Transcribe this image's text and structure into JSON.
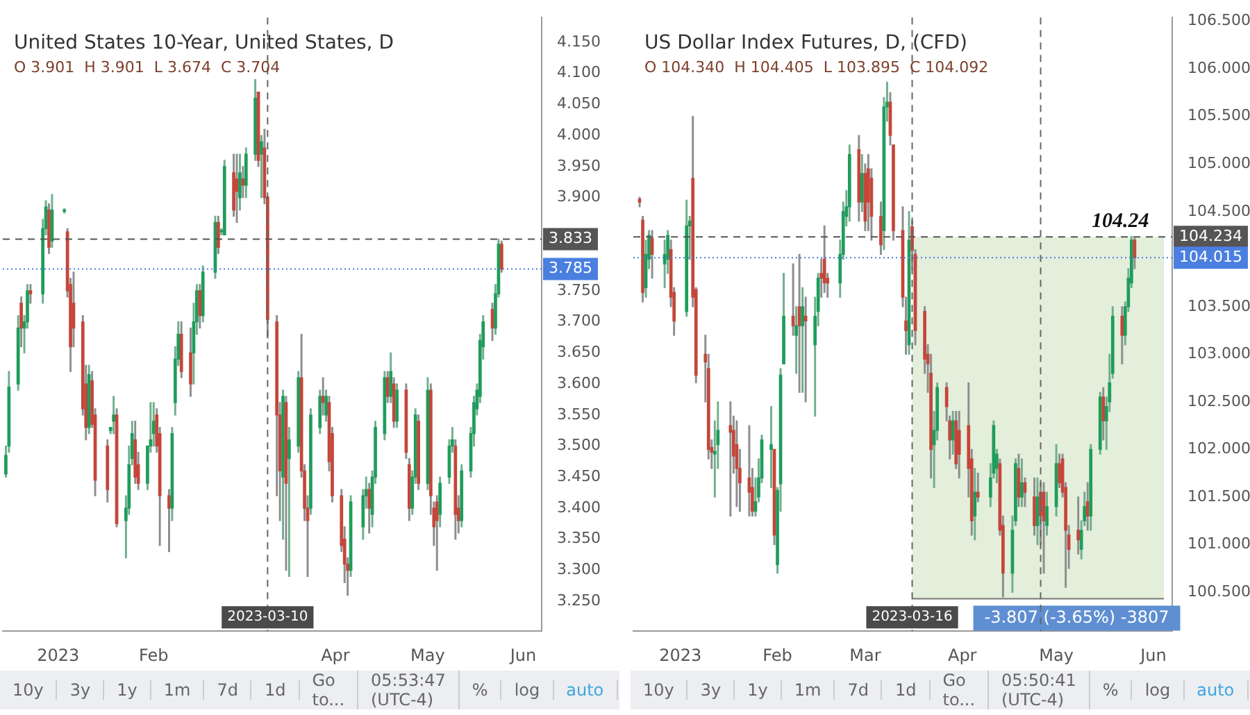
{
  "chart_data": [
    {
      "type": "candlestick",
      "title": "United States 10-Year, United States, D",
      "subtitle": "O 3.901  H 3.901  L 3.674  C 3.704",
      "x": [
        "2022-12-15",
        "2022-12-16",
        "2022-12-19",
        "2022-12-20",
        "2022-12-21",
        "2022-12-22",
        "2022-12-23",
        "2022-12-27",
        "2022-12-28",
        "2022-12-29",
        "2022-12-30",
        "2023-01-03",
        "2023-01-04",
        "2023-01-05",
        "2023-01-06",
        "2023-01-09",
        "2023-01-10",
        "2023-01-11",
        "2023-01-12",
        "2023-01-13",
        "2023-01-17",
        "2023-01-18",
        "2023-01-19",
        "2023-01-20",
        "2023-01-23",
        "2023-01-24",
        "2023-01-25",
        "2023-01-26",
        "2023-01-27",
        "2023-01-30",
        "2023-01-31",
        "2023-02-01",
        "2023-02-02",
        "2023-02-03",
        "2023-02-06",
        "2023-02-07",
        "2023-02-08",
        "2023-02-09",
        "2023-02-10",
        "2023-02-13",
        "2023-02-14",
        "2023-02-15",
        "2023-02-16",
        "2023-02-17",
        "2023-02-21",
        "2023-02-22",
        "2023-02-23",
        "2023-02-24",
        "2023-02-27",
        "2023-02-28",
        "2023-03-01",
        "2023-03-02",
        "2023-03-03",
        "2023-03-06",
        "2023-03-07",
        "2023-03-08",
        "2023-03-09",
        "2023-03-10",
        "2023-03-13",
        "2023-03-14",
        "2023-03-15",
        "2023-03-16",
        "2023-03-17",
        "2023-03-20",
        "2023-03-21",
        "2023-03-22",
        "2023-03-23",
        "2023-03-24",
        "2023-03-27",
        "2023-03-28",
        "2023-03-29",
        "2023-03-30",
        "2023-03-31",
        "2023-04-03",
        "2023-04-04",
        "2023-04-05",
        "2023-04-06",
        "2023-04-10",
        "2023-04-11",
        "2023-04-12",
        "2023-04-13",
        "2023-04-14",
        "2023-04-17",
        "2023-04-18",
        "2023-04-19",
        "2023-04-20",
        "2023-04-21",
        "2023-04-24",
        "2023-04-25",
        "2023-04-26",
        "2023-04-27",
        "2023-04-28",
        "2023-05-01",
        "2023-05-02",
        "2023-05-03",
        "2023-05-04",
        "2023-05-05",
        "2023-05-08",
        "2023-05-09",
        "2023-05-10",
        "2023-05-11",
        "2023-05-12",
        "2023-05-15",
        "2023-05-16",
        "2023-05-17",
        "2023-05-18",
        "2023-05-19",
        "2023-05-22",
        "2023-05-23",
        "2023-05-24",
        "2023-05-25"
      ],
      "ohlc": [
        [
          3.455,
          3.5,
          3.45,
          3.485
        ],
        [
          3.5,
          3.62,
          3.49,
          3.595
        ],
        [
          3.6,
          3.71,
          3.59,
          3.69
        ],
        [
          3.73,
          3.74,
          3.66,
          3.69
        ],
        [
          3.69,
          3.71,
          3.65,
          3.7
        ],
        [
          3.7,
          3.76,
          3.69,
          3.75
        ],
        [
          3.75,
          3.76,
          3.73,
          3.745
        ],
        [
          3.745,
          3.865,
          3.73,
          3.85
        ],
        [
          3.85,
          3.895,
          3.84,
          3.885
        ],
        [
          3.88,
          3.89,
          3.81,
          3.82
        ],
        [
          3.83,
          3.905,
          3.82,
          3.88
        ],
        [
          3.878,
          3.882,
          3.875,
          3.88
        ],
        [
          3.845,
          3.85,
          3.74,
          3.75
        ],
        [
          3.76,
          3.77,
          3.62,
          3.66
        ],
        [
          3.73,
          3.78,
          3.66,
          3.69
        ],
        [
          3.7,
          3.71,
          3.55,
          3.56
        ],
        [
          3.6,
          3.63,
          3.51,
          3.53
        ],
        [
          3.53,
          3.63,
          3.52,
          3.615
        ],
        [
          3.605,
          3.62,
          3.53,
          3.535
        ],
        [
          3.55,
          3.56,
          3.42,
          3.445
        ],
        [
          3.5,
          3.51,
          3.41,
          3.43
        ],
        [
          3.525,
          3.53,
          3.52,
          3.53
        ],
        [
          3.54,
          3.58,
          3.52,
          3.55
        ],
        [
          3.55,
          3.56,
          3.37,
          3.375
        ],
        [
          3.38,
          3.42,
          3.32,
          3.4
        ],
        [
          3.4,
          3.5,
          3.39,
          3.47
        ],
        [
          3.48,
          3.54,
          3.47,
          3.52
        ],
        [
          3.51,
          3.54,
          3.44,
          3.45
        ],
        [
          3.47,
          3.49,
          3.43,
          3.44
        ],
        [
          3.44,
          3.5,
          3.43,
          3.5
        ],
        [
          3.5,
          3.57,
          3.49,
          3.51
        ],
        [
          3.52,
          3.57,
          3.5,
          3.54
        ],
        [
          3.55,
          3.56,
          3.49,
          3.5
        ],
        [
          3.52,
          3.53,
          3.34,
          3.42
        ],
        [
          3.42,
          3.43,
          3.33,
          3.4
        ],
        [
          3.4,
          3.53,
          3.38,
          3.52
        ],
        [
          3.57,
          3.66,
          3.55,
          3.64
        ],
        [
          3.64,
          3.7,
          3.63,
          3.68
        ],
        [
          3.68,
          3.7,
          3.61,
          3.62
        ],
        [
          3.65,
          3.69,
          3.58,
          3.6
        ],
        [
          3.65,
          3.73,
          3.6,
          3.7
        ],
        [
          3.7,
          3.76,
          3.68,
          3.75
        ],
        [
          3.75,
          3.76,
          3.69,
          3.71
        ],
        [
          3.71,
          3.79,
          3.7,
          3.78
        ],
        [
          3.78,
          3.87,
          3.77,
          3.86
        ],
        [
          3.86,
          3.87,
          3.81,
          3.82
        ],
        [
          3.845,
          3.85,
          3.84,
          3.846
        ],
        [
          3.84,
          3.96,
          3.84,
          3.95
        ],
        [
          3.94,
          3.97,
          3.87,
          3.88
        ],
        [
          3.93,
          3.97,
          3.86,
          3.91
        ],
        [
          3.9,
          3.97,
          3.88,
          3.94
        ],
        [
          3.93,
          3.95,
          3.9,
          3.92
        ],
        [
          3.92,
          3.98,
          3.9,
          3.97
        ],
        [
          3.97,
          4.09,
          3.96,
          4.06
        ],
        [
          4.07,
          4.07,
          3.95,
          3.96
        ],
        [
          3.97,
          4.0,
          3.9,
          3.99
        ],
        [
          3.98,
          4.01,
          3.89,
          3.9
        ],
        [
          3.901,
          3.901,
          3.674,
          3.704
        ],
        [
          3.7,
          3.71,
          3.42,
          3.55
        ],
        [
          3.55,
          3.57,
          3.38,
          3.46
        ],
        [
          3.45,
          3.59,
          3.35,
          3.58
        ],
        [
          3.57,
          3.58,
          3.3,
          3.44
        ],
        [
          3.48,
          3.53,
          3.29,
          3.51
        ],
        [
          3.5,
          3.62,
          3.49,
          3.61
        ],
        [
          3.61,
          3.68,
          3.45,
          3.46
        ],
        [
          3.46,
          3.47,
          3.38,
          3.4
        ],
        [
          3.4,
          3.42,
          3.29,
          3.38
        ],
        [
          3.4,
          3.56,
          3.39,
          3.55
        ],
        [
          3.53,
          3.59,
          3.52,
          3.58
        ],
        [
          3.58,
          3.61,
          3.55,
          3.57
        ],
        [
          3.55,
          3.59,
          3.54,
          3.58
        ],
        [
          3.57,
          3.58,
          3.46,
          3.475
        ],
        [
          3.52,
          3.53,
          3.41,
          3.42
        ],
        [
          3.42,
          3.43,
          3.33,
          3.34
        ],
        [
          3.35,
          3.37,
          3.28,
          3.31
        ],
        [
          3.31,
          3.32,
          3.26,
          3.3
        ],
        [
          3.3,
          3.42,
          3.29,
          3.41
        ],
        [
          3.37,
          3.43,
          3.35,
          3.42
        ],
        [
          3.42,
          3.45,
          3.4,
          3.43
        ],
        [
          3.43,
          3.44,
          3.36,
          3.4
        ],
        [
          3.39,
          3.46,
          3.37,
          3.45
        ],
        [
          3.45,
          3.54,
          3.44,
          3.53
        ],
        [
          3.52,
          3.62,
          3.51,
          3.61
        ],
        [
          3.61,
          3.62,
          3.57,
          3.58
        ],
        [
          3.58,
          3.65,
          3.57,
          3.62
        ],
        [
          3.6,
          3.61,
          3.53,
          3.54
        ],
        [
          3.54,
          3.6,
          3.53,
          3.59
        ],
        [
          3.59,
          3.6,
          3.48,
          3.49
        ],
        [
          3.47,
          3.48,
          3.38,
          3.4
        ],
        [
          3.4,
          3.46,
          3.39,
          3.45
        ],
        [
          3.45,
          3.56,
          3.44,
          3.55
        ],
        [
          3.54,
          3.55,
          3.43,
          3.44
        ],
        [
          3.44,
          3.61,
          3.43,
          3.59
        ],
        [
          3.59,
          3.6,
          3.39,
          3.42
        ],
        [
          3.4,
          3.41,
          3.34,
          3.37
        ],
        [
          3.41,
          3.42,
          3.3,
          3.38
        ],
        [
          3.39,
          3.45,
          3.37,
          3.44
        ],
        [
          3.45,
          3.51,
          3.44,
          3.5
        ],
        [
          3.5,
          3.53,
          3.49,
          3.51
        ],
        [
          3.5,
          3.51,
          3.35,
          3.39
        ],
        [
          3.4,
          3.42,
          3.36,
          3.38
        ],
        [
          3.38,
          3.47,
          3.37,
          3.46
        ],
        [
          3.46,
          3.53,
          3.45,
          3.52
        ],
        [
          3.52,
          3.58,
          3.5,
          3.57
        ],
        [
          3.56,
          3.6,
          3.55,
          3.59
        ],
        [
          3.58,
          3.68,
          3.57,
          3.67
        ],
        [
          3.66,
          3.71,
          3.64,
          3.7
        ],
        [
          3.72,
          3.73,
          3.67,
          3.69
        ],
        [
          3.69,
          3.76,
          3.68,
          3.745
        ],
        [
          3.745,
          3.833,
          3.74,
          3.825
        ],
        [
          3.825,
          3.83,
          3.78,
          3.785
        ]
      ],
      "xlim": [
        "2022-12-14",
        "2023-06-07"
      ],
      "xticks": [
        {
          "value": "2023-01-01",
          "label": "2023"
        },
        {
          "value": "2023-02-01",
          "label": "Feb"
        },
        {
          "value": "2023-04-01",
          "label": "Apr"
        },
        {
          "value": "2023-05-01",
          "label": "May"
        },
        {
          "value": "2023-06-01",
          "label": "Jun"
        }
      ],
      "ylim": [
        3.202,
        4.19
      ],
      "yticks": [
        {
          "value": 3.25,
          "label": "3.250"
        },
        {
          "value": 3.3,
          "label": "3.300"
        },
        {
          "value": 3.35,
          "label": "3.350"
        },
        {
          "value": 3.4,
          "label": "3.400"
        },
        {
          "value": 3.45,
          "label": "3.450"
        },
        {
          "value": 3.5,
          "label": "3.500"
        },
        {
          "value": 3.55,
          "label": "3.550"
        },
        {
          "value": 3.6,
          "label": "3.600"
        },
        {
          "value": 3.65,
          "label": "3.650"
        },
        {
          "value": 3.7,
          "label": "3.700"
        },
        {
          "value": 3.75,
          "label": "3.750"
        },
        {
          "value": 3.9,
          "label": "3.900"
        },
        {
          "value": 3.95,
          "label": "3.950"
        },
        {
          "value": 4.0,
          "label": "4.000"
        },
        {
          "value": 4.05,
          "label": "4.050"
        },
        {
          "value": 4.1,
          "label": "4.100"
        },
        {
          "value": 4.15,
          "label": "4.150"
        }
      ],
      "ref_lines": [
        {
          "axis": "y",
          "value": 3.833,
          "label": "3.833",
          "color": "#555555",
          "line_style": "dashed"
        },
        {
          "axis": "y",
          "value": 3.785,
          "label": "3.785",
          "color": "#4a7fe0",
          "line_style": "dotted"
        },
        {
          "axis": "x",
          "value": "2023-03-10",
          "label": "2023-03-10",
          "color": "#666666",
          "line_style": "dashed"
        }
      ],
      "annotations": [
        "10y",
        "3y",
        "1y",
        "1m",
        "7d",
        "1d",
        "Go to...",
        "05:53:47 (UTC-4)",
        "%",
        "log",
        "auto"
      ],
      "grid": false,
      "legend": false
    },
    {
      "type": "candlestick",
      "title": "US Dollar Index Futures, D, (CFD)",
      "subtitle": "O 104.340  H 104.405  L 103.895  C 104.092",
      "x": [
        "2022-12-19",
        "2022-12-20",
        "2022-12-21",
        "2022-12-22",
        "2022-12-23",
        "2022-12-27",
        "2022-12-28",
        "2022-12-29",
        "2022-12-30",
        "2023-01-03",
        "2023-01-04",
        "2023-01-05",
        "2023-01-06",
        "2023-01-09",
        "2023-01-10",
        "2023-01-11",
        "2023-01-12",
        "2023-01-13",
        "2023-01-17",
        "2023-01-18",
        "2023-01-19",
        "2023-01-20",
        "2023-01-23",
        "2023-01-24",
        "2023-01-25",
        "2023-01-26",
        "2023-01-27",
        "2023-01-30",
        "2023-01-31",
        "2023-02-01",
        "2023-02-02",
        "2023-02-03",
        "2023-02-06",
        "2023-02-07",
        "2023-02-08",
        "2023-02-09",
        "2023-02-10",
        "2023-02-13",
        "2023-02-14",
        "2023-02-15",
        "2023-02-16",
        "2023-02-17",
        "2023-02-21",
        "2023-02-22",
        "2023-02-23",
        "2023-02-24",
        "2023-02-27",
        "2023-02-28",
        "2023-03-01",
        "2023-03-02",
        "2023-03-03",
        "2023-03-06",
        "2023-03-07",
        "2023-03-08",
        "2023-03-09",
        "2023-03-10",
        "2023-03-13",
        "2023-03-14",
        "2023-03-15",
        "2023-03-16",
        "2023-03-17",
        "2023-03-20",
        "2023-03-21",
        "2023-03-22",
        "2023-03-23",
        "2023-03-24",
        "2023-03-27",
        "2023-03-28",
        "2023-03-29",
        "2023-03-30",
        "2023-03-31",
        "2023-04-03",
        "2023-04-04",
        "2023-04-05",
        "2023-04-06",
        "2023-04-10",
        "2023-04-11",
        "2023-04-12",
        "2023-04-13",
        "2023-04-14",
        "2023-04-17",
        "2023-04-18",
        "2023-04-19",
        "2023-04-20",
        "2023-04-21",
        "2023-04-24",
        "2023-04-25",
        "2023-04-26",
        "2023-04-27",
        "2023-04-28",
        "2023-05-01",
        "2023-05-02",
        "2023-05-03",
        "2023-05-04",
        "2023-05-05",
        "2023-05-08",
        "2023-05-09",
        "2023-05-10",
        "2023-05-11",
        "2023-05-12",
        "2023-05-15",
        "2023-05-16",
        "2023-05-17",
        "2023-05-18",
        "2023-05-19",
        "2023-05-22",
        "2023-05-23",
        "2023-05-24",
        "2023-05-25",
        "2023-05-26"
      ],
      "ohlc": [
        [
          104.63,
          104.65,
          104.55,
          104.6
        ],
        [
          104.41,
          104.45,
          103.55,
          103.65
        ],
        [
          103.7,
          104.2,
          103.6,
          104.05
        ],
        [
          104.0,
          104.3,
          103.9,
          104.25
        ],
        [
          104.22,
          104.3,
          103.8,
          104.05
        ],
        [
          103.95,
          104.2,
          103.7,
          104.05
        ],
        [
          104.0,
          104.3,
          103.85,
          104.25
        ],
        [
          104.1,
          104.2,
          103.5,
          103.6
        ],
        [
          103.65,
          103.7,
          103.2,
          103.35
        ],
        [
          103.45,
          104.62,
          103.4,
          104.35
        ],
        [
          104.35,
          104.45,
          104.0,
          104.4
        ],
        [
          104.85,
          105.5,
          103.5,
          103.6
        ],
        [
          103.68,
          103.7,
          102.7,
          102.78
        ],
        [
          103.0,
          103.2,
          102.5,
          102.92
        ],
        [
          102.85,
          103.0,
          101.9,
          102.0
        ],
        [
          102.02,
          102.1,
          101.8,
          101.97
        ],
        [
          101.95,
          102.3,
          101.5,
          101.98
        ],
        [
          102.05,
          102.5,
          101.8,
          102.2
        ],
        [
          102.25,
          102.5,
          101.3,
          102.18
        ],
        [
          102.2,
          102.35,
          101.75,
          101.93
        ],
        [
          102.05,
          102.3,
          101.4,
          101.8
        ],
        [
          101.8,
          102.0,
          101.35,
          101.65
        ],
        [
          101.7,
          102.25,
          101.3,
          101.55
        ],
        [
          101.6,
          101.8,
          101.3,
          101.35
        ],
        [
          101.35,
          101.7,
          101.3,
          101.45
        ],
        [
          101.5,
          101.9,
          101.45,
          101.7
        ],
        [
          101.7,
          102.15,
          101.65,
          102.1
        ],
        [
          102.0,
          102.45,
          101.6,
          102.05
        ],
        [
          102.0,
          102.0,
          101.0,
          101.1
        ],
        [
          100.79,
          101.6,
          100.7,
          101.57
        ],
        [
          101.64,
          102.85,
          101.35,
          102.78
        ],
        [
          102.9,
          103.85,
          102.9,
          103.4
        ],
        [
          103.4,
          103.95,
          103.2,
          103.3
        ],
        [
          103.2,
          103.5,
          102.8,
          103.3
        ],
        [
          103.5,
          104.05,
          102.6,
          103.3
        ],
        [
          103.3,
          103.7,
          102.6,
          103.5
        ],
        [
          103.4,
          103.6,
          102.5,
          103.35
        ],
        [
          103.1,
          103.6,
          102.35,
          103.4
        ],
        [
          103.45,
          103.85,
          103.3,
          103.8
        ],
        [
          103.85,
          104.0,
          103.6,
          103.8
        ],
        [
          104.0,
          104.35,
          103.65,
          103.75
        ],
        [
          103.8,
          103.85,
          103.6,
          103.75
        ],
        [
          103.75,
          104.2,
          103.6,
          104.05
        ],
        [
          104.05,
          104.6,
          104.0,
          104.5
        ],
        [
          104.45,
          104.72,
          104.35,
          104.55
        ],
        [
          104.55,
          105.2,
          104.4,
          105.1
        ],
        [
          105.15,
          105.3,
          104.4,
          104.6
        ],
        [
          104.6,
          105.1,
          104.5,
          104.9
        ],
        [
          104.9,
          105.0,
          104.3,
          104.4
        ],
        [
          104.95,
          105.1,
          104.3,
          104.6
        ],
        [
          104.85,
          104.95,
          104.2,
          104.45
        ],
        [
          104.45,
          104.6,
          104.05,
          104.15
        ],
        [
          104.3,
          105.7,
          104.1,
          105.6
        ],
        [
          105.6,
          105.86,
          105.45,
          105.65
        ],
        [
          105.65,
          105.75,
          105.2,
          105.3
        ],
        [
          105.2,
          105.2,
          104.2,
          104.3
        ],
        [
          104.3,
          104.55,
          103.5,
          103.6
        ],
        [
          103.35,
          103.6,
          103.0,
          103.25
        ],
        [
          103.1,
          104.5,
          103.0,
          104.2
        ],
        [
          104.34,
          104.405,
          103.895,
          104.092
        ],
        [
          104.05,
          104.1,
          103.1,
          103.25
        ],
        [
          103.45,
          103.5,
          102.8,
          102.95
        ],
        [
          103.0,
          103.1,
          102.6,
          102.9
        ],
        [
          102.8,
          103.0,
          101.7,
          102.0
        ],
        [
          102.05,
          102.4,
          101.6,
          102.2
        ],
        [
          102.2,
          102.7,
          102.1,
          102.65
        ],
        [
          102.65,
          102.7,
          102.3,
          102.45
        ],
        [
          102.3,
          102.35,
          101.9,
          102.1
        ],
        [
          102.1,
          102.4,
          101.95,
          102.3
        ],
        [
          102.3,
          102.4,
          101.8,
          101.85
        ],
        [
          102.2,
          102.4,
          101.7,
          101.95
        ],
        [
          102.25,
          102.7,
          101.5,
          101.8
        ],
        [
          101.9,
          102.0,
          101.1,
          101.25
        ],
        [
          101.3,
          101.8,
          101.05,
          101.55
        ],
        [
          101.55,
          101.75,
          101.45,
          101.5
        ],
        [
          101.5,
          101.85,
          101.4,
          101.7
        ],
        [
          101.75,
          102.3,
          101.7,
          102.25
        ],
        [
          101.8,
          102.0,
          101.65,
          101.95
        ],
        [
          101.85,
          101.9,
          101.1,
          101.15
        ],
        [
          101.2,
          101.3,
          100.45,
          100.7
        ],
        [
          100.7,
          101.3,
          100.5,
          101.15
        ],
        [
          101.25,
          101.9,
          101.2,
          101.85
        ],
        [
          101.8,
          101.95,
          101.4,
          101.5
        ],
        [
          101.5,
          101.9,
          101.4,
          101.65
        ],
        [
          101.65,
          101.7,
          101.4,
          101.55
        ],
        [
          101.5,
          101.7,
          101.1,
          101.2
        ],
        [
          101.2,
          101.7,
          101.0,
          101.5
        ],
        [
          101.55,
          101.65,
          101.0,
          101.3
        ],
        [
          101.55,
          101.65,
          100.7,
          101.25
        ],
        [
          101.2,
          101.55,
          101.1,
          101.4
        ],
        [
          101.4,
          102.05,
          101.3,
          101.85
        ],
        [
          101.85,
          101.95,
          101.6,
          101.65
        ],
        [
          101.9,
          101.95,
          101.5,
          101.55
        ],
        [
          101.6,
          101.65,
          100.55,
          101.15
        ],
        [
          101.1,
          101.2,
          100.75,
          100.95
        ],
        [
          101.15,
          101.5,
          100.9,
          101.05
        ],
        [
          100.95,
          101.25,
          100.85,
          101.15
        ],
        [
          101.25,
          101.55,
          101.2,
          101.4
        ],
        [
          101.45,
          101.65,
          101.15,
          101.3
        ],
        [
          101.3,
          102.05,
          101.15,
          102.0
        ],
        [
          102.0,
          102.6,
          101.95,
          102.55
        ],
        [
          102.55,
          102.65,
          102.1,
          102.3
        ],
        [
          102.3,
          102.55,
          102.0,
          102.45
        ],
        [
          102.5,
          103.0,
          102.4,
          102.7
        ],
        [
          102.8,
          103.5,
          102.75,
          103.4
        ],
        [
          103.4,
          103.5,
          102.9,
          103.2
        ],
        [
          103.2,
          103.55,
          103.1,
          103.5
        ],
        [
          103.5,
          103.9,
          103.45,
          103.8
        ],
        [
          103.75,
          104.24,
          103.7,
          104.2
        ],
        [
          104.2,
          104.22,
          103.9,
          104.015
        ]
      ],
      "xlim": [
        "2022-12-17",
        "2023-06-07"
      ],
      "xticks": [
        {
          "value": "2023-01-01",
          "label": "2023"
        },
        {
          "value": "2023-02-01",
          "label": "Feb"
        },
        {
          "value": "2023-03-01",
          "label": "Mar"
        },
        {
          "value": "2023-04-01",
          "label": "Apr"
        },
        {
          "value": "2023-05-01",
          "label": "May"
        },
        {
          "value": "2023-06-01",
          "label": "Jun"
        }
      ],
      "ylim": [
        100.09,
        106.54
      ],
      "yticks": [
        {
          "value": 100.5,
          "label": "100.500"
        },
        {
          "value": 101,
          "label": "101.000"
        },
        {
          "value": 101.5,
          "label": "101.500"
        },
        {
          "value": 102,
          "label": "102.000"
        },
        {
          "value": 102.5,
          "label": "102.500"
        },
        {
          "value": 103,
          "label": "103.000"
        },
        {
          "value": 103.5,
          "label": "103.500"
        },
        {
          "value": 104.5,
          "label": "104.500"
        },
        {
          "value": 105,
          "label": "105.000"
        },
        {
          "value": 105.5,
          "label": "105.500"
        },
        {
          "value": 106,
          "label": "106.000"
        },
        {
          "value": 106.5,
          "label": "106.500"
        }
      ],
      "ref_lines": [
        {
          "axis": "y",
          "value": 104.234,
          "label": "104.234",
          "color": "#555555",
          "line_style": "dashed"
        },
        {
          "axis": "y",
          "value": 104.015,
          "label": "104.015",
          "color": "#4a7fe0",
          "line_style": "dotted"
        },
        {
          "axis": "x",
          "value": "2023-03-16",
          "label": "2023-03-16",
          "color": "#666666",
          "line_style": "dashed"
        },
        {
          "axis": "x",
          "value": "2023-04-26",
          "color": "#666666",
          "line_style": "dashed"
        }
      ],
      "bands": [
        {
          "axis": "y",
          "from": 100.43,
          "to": 104.234,
          "label": "-3.807 (-3.65%) -3807",
          "color": "#e3eedb"
        }
      ],
      "annotations": [
        {
          "text": "104.24",
          "x": "2023-05-25",
          "y": 104.24
        },
        "10y",
        "3y",
        "1y",
        "1m",
        "7d",
        "1d",
        "Go to...",
        "05:50:41 (UTC-4)",
        "%",
        "log",
        "auto"
      ],
      "grid": false,
      "legend": false
    }
  ]
}
